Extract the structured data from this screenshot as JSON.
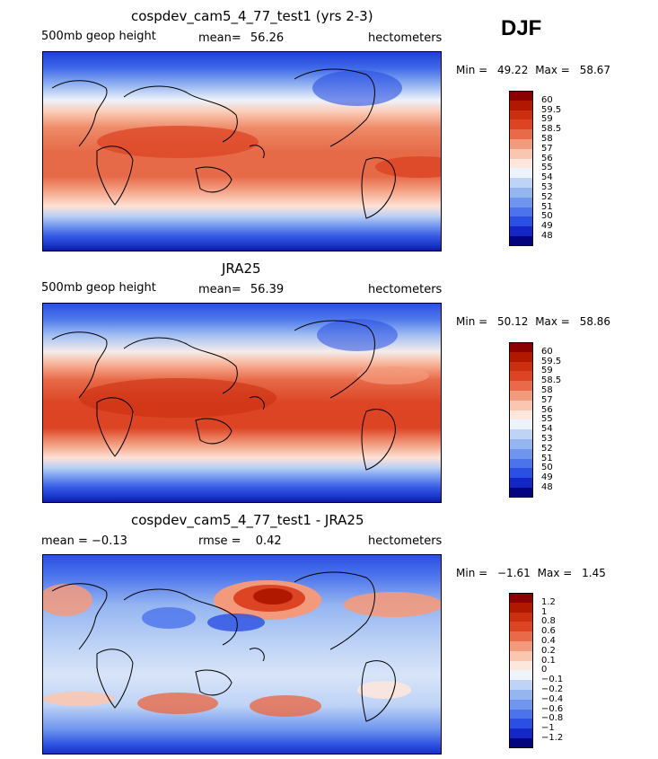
{
  "season": "DJF",
  "panels": [
    {
      "title": "cospdev_cam5_4_77_test1 (yrs 2-3)",
      "left_text": "500mb geop height",
      "mean_label": "mean=",
      "mean_value": "56.26",
      "units": "hectometers",
      "min_label": "Min =",
      "min_value": "49.22",
      "max_label": "Max =",
      "max_value": "58.67"
    },
    {
      "title": "JRA25",
      "left_text": "500mb geop height",
      "mean_label": "mean=",
      "mean_value": "56.39",
      "units": "hectometers",
      "min_label": "Min =",
      "min_value": "50.12",
      "max_label": "Max =",
      "max_value": "58.86"
    },
    {
      "title": "cospdev_cam5_4_77_test1 - JRA25",
      "left_text": "mean =  −0.13",
      "mean_label": "rmse =",
      "mean_value": "0.42",
      "units": "hectometers",
      "min_label": "Min =",
      "min_value": "−1.61",
      "max_label": "Max =",
      "max_value": "1.45"
    }
  ],
  "chart_data": [
    {
      "type": "heatmap",
      "colorbar_levels": [
        "60",
        "59.5",
        "59",
        "58.5",
        "58",
        "57",
        "56",
        "55",
        "54",
        "53",
        "52",
        "51",
        "50",
        "49",
        "48"
      ],
      "colors": [
        "#8b0000",
        "#b01800",
        "#cc2e10",
        "#dc4424",
        "#e86a48",
        "#f39a7c",
        "#fbc6b0",
        "#fde6dc",
        "#edf3fa",
        "#bed3f6",
        "#95b5f1",
        "#6f95ee",
        "#4b73ec",
        "#2a4fe2",
        "#1427c6",
        "#04057e"
      ]
    },
    {
      "type": "heatmap",
      "colorbar_levels": [
        "60",
        "59.5",
        "59",
        "58.5",
        "58",
        "57",
        "56",
        "55",
        "54",
        "53",
        "52",
        "51",
        "50",
        "49",
        "48"
      ],
      "colors": [
        "#8b0000",
        "#b01800",
        "#cc2e10",
        "#dc4424",
        "#e86a48",
        "#f39a7c",
        "#fbc6b0",
        "#fde6dc",
        "#edf3fa",
        "#bed3f6",
        "#95b5f1",
        "#6f95ee",
        "#4b73ec",
        "#2a4fe2",
        "#1427c6",
        "#04057e"
      ]
    },
    {
      "type": "heatmap",
      "colorbar_levels": [
        "1.2",
        "1",
        "0.8",
        "0.6",
        "0.4",
        "0.2",
        "0.1",
        "0",
        "−0.1",
        "−0.2",
        "−0.4",
        "−0.6",
        "−0.8",
        "−1",
        "−1.2"
      ],
      "colors": [
        "#8b0000",
        "#b01800",
        "#cc2e10",
        "#dc4424",
        "#e86a48",
        "#f39a7c",
        "#fbc6b0",
        "#fde6dc",
        "#edf3fa",
        "#bed3f6",
        "#95b5f1",
        "#6f95ee",
        "#4b73ec",
        "#2a4fe2",
        "#1427c6",
        "#04057e"
      ]
    }
  ]
}
